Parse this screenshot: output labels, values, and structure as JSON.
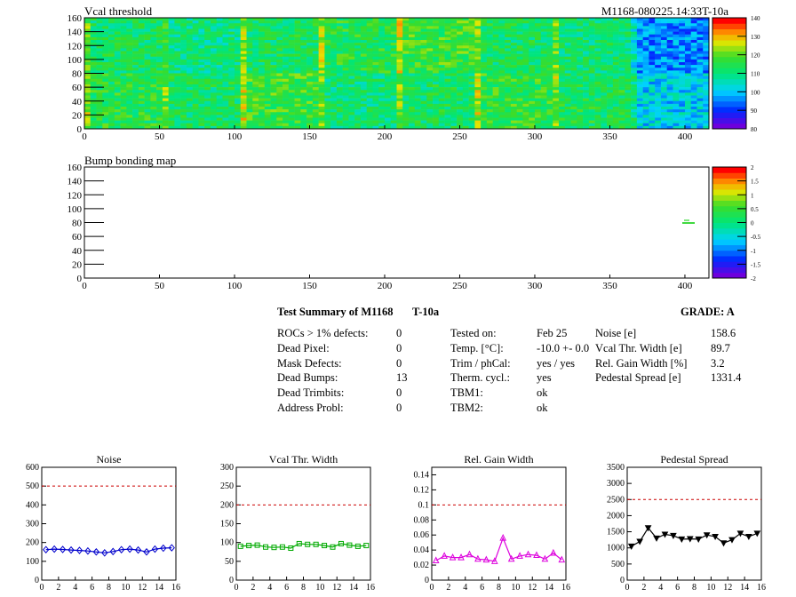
{
  "module_title": "M1168-080225.14:33T-10a",
  "maps": [
    {
      "title": "Vcal threshold",
      "x_ticks": [
        "0",
        "50",
        "100",
        "150",
        "200",
        "250",
        "300",
        "350",
        "400"
      ],
      "y_ticks": [
        "0",
        "20",
        "40",
        "60",
        "80",
        "100",
        "120",
        "140",
        "160"
      ],
      "palette_ticks": [
        "80",
        "90",
        "100",
        "110",
        "120",
        "130",
        "140"
      ],
      "range": [
        80,
        140
      ]
    },
    {
      "title": "Bump bonding map",
      "x_ticks": [
        "0",
        "50",
        "100",
        "150",
        "200",
        "250",
        "300",
        "350",
        "400"
      ],
      "y_ticks": [
        "0",
        "20",
        "40",
        "60",
        "80",
        "100",
        "120",
        "140",
        "160"
      ],
      "palette_ticks": [
        "-2",
        "-1.5",
        "-1",
        "-0.5",
        "0",
        "0.5",
        "1",
        "1.5",
        "2"
      ],
      "range": [
        -2,
        2
      ]
    }
  ],
  "summary": {
    "title": "Test Summary of M1168",
    "temp_tag": "T-10a",
    "grade": "GRADE:  A",
    "col1": [
      {
        "label": "ROCs > 1% defects:",
        "value": "0"
      },
      {
        "label": "Dead Pixel:",
        "value": "0"
      },
      {
        "label": "Mask Defects:",
        "value": "0"
      },
      {
        "label": "Dead Bumps:",
        "value": "13"
      },
      {
        "label": "Dead Trimbits:",
        "value": "0"
      },
      {
        "label": "Address Probl:",
        "value": "0"
      }
    ],
    "col2": [
      {
        "label": "Tested on:",
        "value": "Feb 25"
      },
      {
        "label": "Temp. [°C]:",
        "value": "-10.0 +- 0.0"
      },
      {
        "label": "Trim / phCal:",
        "value": "yes / yes"
      },
      {
        "label": "Therm. cycl.:",
        "value": "yes"
      },
      {
        "label": "TBM1:",
        "value": "ok"
      },
      {
        "label": "TBM2:",
        "value": "ok"
      }
    ],
    "col3": [
      {
        "label": "Noise [e]",
        "value": "158.6"
      },
      {
        "label": "Vcal Thr. Width [e]",
        "value": "89.7"
      },
      {
        "label": "Rel. Gain Width [%]",
        "value": "3.2"
      },
      {
        "label": "Pedestal Spread [e]",
        "value": "1331.4"
      }
    ]
  },
  "chart_data": [
    {
      "type": "line",
      "title": "Noise",
      "color": "#0000cc",
      "marker": "diamond",
      "x": [
        0.5,
        1.5,
        2.5,
        3.5,
        4.5,
        5.5,
        6.5,
        7.5,
        8.5,
        9.5,
        10.5,
        11.5,
        12.5,
        13.5,
        14.5,
        15.5
      ],
      "values": [
        162,
        165,
        163,
        160,
        158,
        155,
        150,
        145,
        152,
        162,
        165,
        160,
        150,
        165,
        170,
        172
      ],
      "xlim": [
        0,
        16
      ],
      "ylim": [
        0,
        600
      ],
      "x_ticks": [
        "0",
        "2",
        "4",
        "6",
        "8",
        "10",
        "12",
        "14",
        "16"
      ],
      "y_ticks": [
        "0",
        "100",
        "200",
        "300",
        "400",
        "500",
        "600"
      ],
      "threshold": 500
    },
    {
      "type": "line",
      "title": "Vcal Thr. Width",
      "color": "#00aa00",
      "marker": "square",
      "x": [
        0.5,
        1.5,
        2.5,
        3.5,
        4.5,
        5.5,
        6.5,
        7.5,
        8.5,
        9.5,
        10.5,
        11.5,
        12.5,
        13.5,
        14.5,
        15.5
      ],
      "values": [
        90,
        92,
        93,
        88,
        87,
        88,
        85,
        97,
        95,
        95,
        92,
        88,
        97,
        93,
        90,
        92
      ],
      "xlim": [
        0,
        16
      ],
      "ylim": [
        0,
        300
      ],
      "x_ticks": [
        "0",
        "2",
        "4",
        "6",
        "8",
        "10",
        "12",
        "14",
        "16"
      ],
      "y_ticks": [
        "0",
        "50",
        "100",
        "150",
        "200",
        "250",
        "300"
      ],
      "threshold": 200
    },
    {
      "type": "line",
      "title": "Rel. Gain Width",
      "color": "#dd00dd",
      "marker": "triangle",
      "x": [
        0.5,
        1.5,
        2.5,
        3.5,
        4.5,
        5.5,
        6.5,
        7.5,
        8.5,
        9.5,
        10.5,
        11.5,
        12.5,
        13.5,
        14.5,
        15.5
      ],
      "values": [
        0.026,
        0.032,
        0.03,
        0.03,
        0.034,
        0.028,
        0.027,
        0.025,
        0.056,
        0.028,
        0.032,
        0.034,
        0.033,
        0.028,
        0.036,
        0.027
      ],
      "xlim": [
        0,
        16
      ],
      "ylim": [
        0,
        0.15
      ],
      "x_ticks": [
        "0",
        "2",
        "4",
        "6",
        "8",
        "10",
        "12",
        "14",
        "16"
      ],
      "y_ticks": [
        "0",
        "0.02",
        "0.04",
        "0.06",
        "0.08",
        "0.1",
        "0.12",
        "0.14"
      ],
      "threshold": 0.1
    },
    {
      "type": "line",
      "title": "Pedestal Spread",
      "color": "#000000",
      "marker": "down-triangle",
      "x": [
        0.5,
        1.5,
        2.5,
        3.5,
        4.5,
        5.5,
        6.5,
        7.5,
        8.5,
        9.5,
        10.5,
        11.5,
        12.5,
        13.5,
        14.5,
        15.5
      ],
      "values": [
        1050,
        1200,
        1620,
        1300,
        1420,
        1380,
        1270,
        1280,
        1270,
        1400,
        1350,
        1150,
        1250,
        1450,
        1350,
        1450
      ],
      "xlim": [
        0,
        16
      ],
      "ylim": [
        0,
        3500
      ],
      "x_ticks": [
        "0",
        "2",
        "4",
        "6",
        "8",
        "10",
        "12",
        "14",
        "16"
      ],
      "y_ticks": [
        "0",
        "500",
        "1000",
        "1500",
        "2000",
        "2500",
        "3000",
        "3500"
      ],
      "threshold": 2500
    }
  ]
}
